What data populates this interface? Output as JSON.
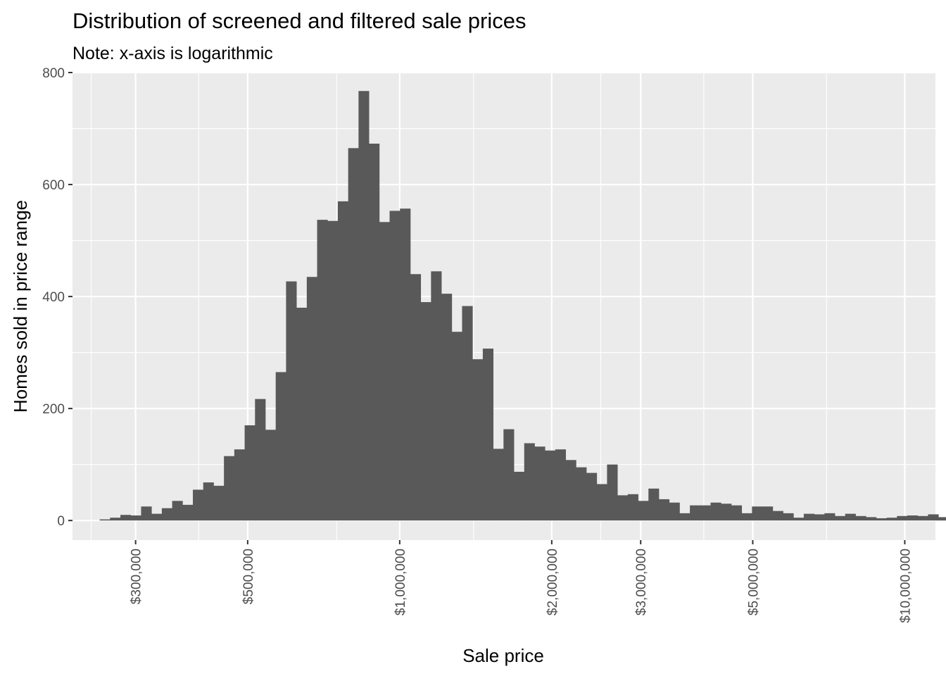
{
  "chart_data": {
    "type": "bar",
    "title": "Distribution of screened and filtered sale prices",
    "subtitle": "Note: x-axis is logarithmic",
    "xlabel": "Sale price",
    "ylabel": "Homes sold in price range",
    "x_scale": "log10",
    "xlim": [
      225000,
      11500000
    ],
    "ylim": [
      -35,
      800
    ],
    "grid": true,
    "bar_color": "#595959",
    "panel_color": "#ebebeb",
    "grid_color": "#ffffff",
    "y_ticks": [
      {
        "value": 0,
        "label": "0"
      },
      {
        "value": 200,
        "label": "200"
      },
      {
        "value": 400,
        "label": "400"
      },
      {
        "value": 600,
        "label": "600"
      },
      {
        "value": 800,
        "label": "800"
      }
    ],
    "x_ticks": [
      {
        "value": 300000,
        "label": "$300,000"
      },
      {
        "value": 500000,
        "label": "$500,000"
      },
      {
        "value": 1000000,
        "label": "$1,000,000"
      },
      {
        "value": 2000000,
        "label": "$2,000,000"
      },
      {
        "value": 3000000,
        "label": "$3,000,000"
      },
      {
        "value": 5000000,
        "label": "$5,000,000"
      },
      {
        "value": 10000000,
        "label": "$10,000,000"
      }
    ],
    "x_minor_ticks": [
      245000,
      400000,
      750000,
      1400000,
      2500000,
      4000000,
      7000000
    ],
    "bins": {
      "log10_start": 5.406,
      "log10_width": 0.0205,
      "counts": [
        2,
        5,
        10,
        9,
        25,
        12,
        22,
        35,
        28,
        55,
        68,
        62,
        115,
        127,
        170,
        217,
        162,
        265,
        427,
        380,
        435,
        537,
        535,
        570,
        665,
        767,
        673,
        533,
        553,
        557,
        440,
        390,
        445,
        405,
        337,
        383,
        288,
        307,
        128,
        163,
        87,
        138,
        132,
        125,
        127,
        108,
        95,
        85,
        65,
        100,
        45,
        47,
        35,
        57,
        38,
        32,
        13,
        27,
        27,
        32,
        30,
        27,
        13,
        25,
        25,
        17,
        13,
        5,
        12,
        11,
        13,
        8,
        12,
        8,
        6,
        4,
        5,
        8,
        9,
        8,
        11,
        6,
        5,
        9,
        4,
        6,
        7,
        8,
        9,
        7,
        6,
        8,
        5,
        1,
        0,
        1,
        0,
        5,
        4
      ]
    }
  }
}
